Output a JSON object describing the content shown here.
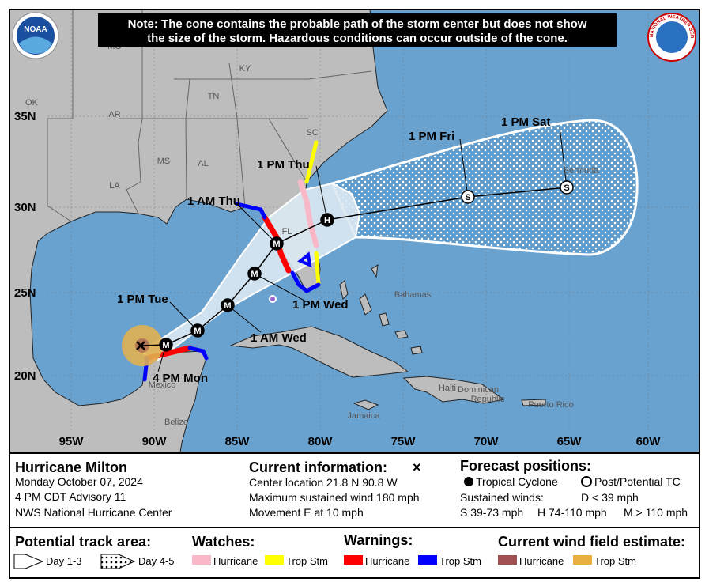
{
  "note": [
    "Note: The cone contains the probable path of the storm center but does not show",
    "the size of the storm. Hazardous conditions can occur outside of the cone."
  ],
  "logos": {
    "left": "NOAA",
    "right": "NATIONAL WEATHER SERVICE"
  },
  "map": {
    "lat_labels": [
      "35N",
      "30N",
      "25N",
      "20N"
    ],
    "lon_labels": [
      "95W",
      "90W",
      "85W",
      "80W",
      "75W",
      "70W",
      "65W",
      "60W"
    ],
    "place_labels": [
      "MO",
      "KY",
      "TN",
      "OK",
      "AR",
      "SC",
      "MS",
      "AL",
      "LA",
      "FL",
      "Bahamas",
      "Bermuda",
      "Haiti",
      "Dominican",
      "Republic",
      "Puerto Rico",
      "Jamaica",
      "Mexico",
      "Belize"
    ],
    "forecast_points": [
      {
        "label": "4 PM Mon",
        "symbol": "M"
      },
      {
        "label": "1 PM Tue",
        "symbol": "M"
      },
      {
        "label": "1 AM Wed",
        "symbol": "M"
      },
      {
        "label": "1 PM Wed",
        "symbol": "M"
      },
      {
        "label": "1 AM Thu",
        "symbol": "M"
      },
      {
        "label": "1 PM Thu",
        "symbol": "H"
      },
      {
        "label": "1 PM Fri",
        "symbol": "S"
      },
      {
        "label": "1 PM Sat",
        "symbol": "S"
      }
    ]
  },
  "info": {
    "storm": "Hurricane Milton",
    "date": "Monday October 07, 2024",
    "advisory": "4 PM CDT Advisory 11",
    "center": "NWS National Hurricane Center",
    "current_title": "Current information:",
    "current_symbol": "×",
    "location": "Center location 21.8 N 90.8 W",
    "wind": "Maximum sustained wind 180 mph",
    "movement": "Movement E at 10 mph",
    "forecast_title": "Forecast positions:",
    "tropical": "Tropical Cyclone",
    "post": "Post/Potential TC",
    "sustained": "Sustained winds:",
    "d": "D < 39 mph",
    "s": "S 39-73 mph",
    "h": "H 74-110 mph",
    "m": "M > 110 mph"
  },
  "legend": {
    "track_title": "Potential track area:",
    "day13": "Day 1-3",
    "day45": "Day 4-5",
    "watches_title": "Watches:",
    "watch_hu": "Hurricane",
    "watch_ts": "Trop Stm",
    "warnings_title": "Warnings:",
    "warn_hu": "Hurricane",
    "warn_ts": "Trop Stm",
    "wind_title": "Current wind field estimate:",
    "wind_hu": "Hurricane",
    "wind_ts": "Trop Stm"
  }
}
